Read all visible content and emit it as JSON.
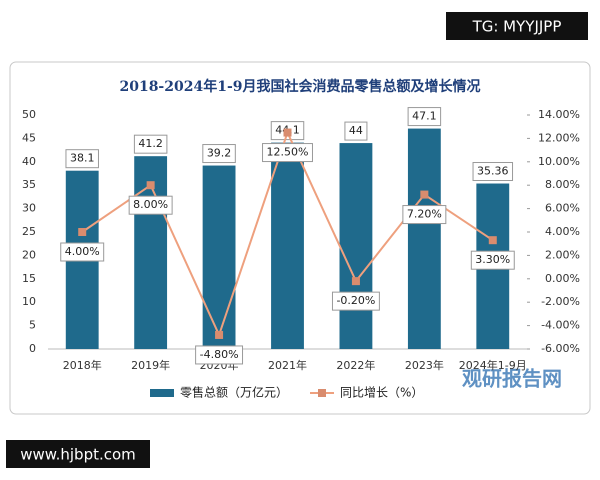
{
  "chart_data": {
    "type": "bar",
    "title": "2018-2024年1-9月我国社会消费品零售总额及增长情况",
    "categories": [
      "2018年",
      "2019年",
      "2020年",
      "2021年",
      "2022年",
      "2023年",
      "2024年1-9月"
    ],
    "series": [
      {
        "name": "零售总额（万亿元）",
        "color": "#1f6a8c",
        "values": [
          38.1,
          41.2,
          39.2,
          44.1,
          44,
          47.1,
          35.36
        ]
      },
      {
        "name": "同比增长（%）",
        "color": "#eea07e",
        "axis": "y2",
        "values": [
          4,
          8,
          -4.8,
          12.5,
          -0.2,
          7.2,
          3.3
        ],
        "value_labels": [
          "4.00%",
          "8.00%",
          "-4.80%",
          "12.50%",
          "-0.20%",
          "7.20%",
          "3.30%"
        ]
      }
    ],
    "ylim": [
      0,
      50
    ],
    "yticks": [
      0,
      5,
      10,
      15,
      20,
      25,
      30,
      35,
      40,
      45,
      50
    ],
    "y2lim": [
      -6,
      14
    ],
    "y2ticks": [
      {
        "value": -6,
        "label": "-6.00%"
      },
      {
        "value": -4,
        "label": "-4.00%"
      },
      {
        "value": -2,
        "label": "-2.00%"
      },
      {
        "value": 0,
        "label": "0.00%"
      },
      {
        "value": 2,
        "label": "2.00%"
      },
      {
        "value": 4,
        "label": "4.00%"
      },
      {
        "value": 6,
        "label": "6.00%"
      },
      {
        "value": 8,
        "label": "8.00%"
      },
      {
        "value": 10,
        "label": "10.00%"
      },
      {
        "value": 12,
        "label": "12.00%"
      },
      {
        "value": 14,
        "label": "14.00%"
      }
    ],
    "grid": false
  },
  "watermarks": {
    "top": "TG: MYYJJPP",
    "bottom": "www.hjbpt.com",
    "logo": "观研报告网"
  }
}
